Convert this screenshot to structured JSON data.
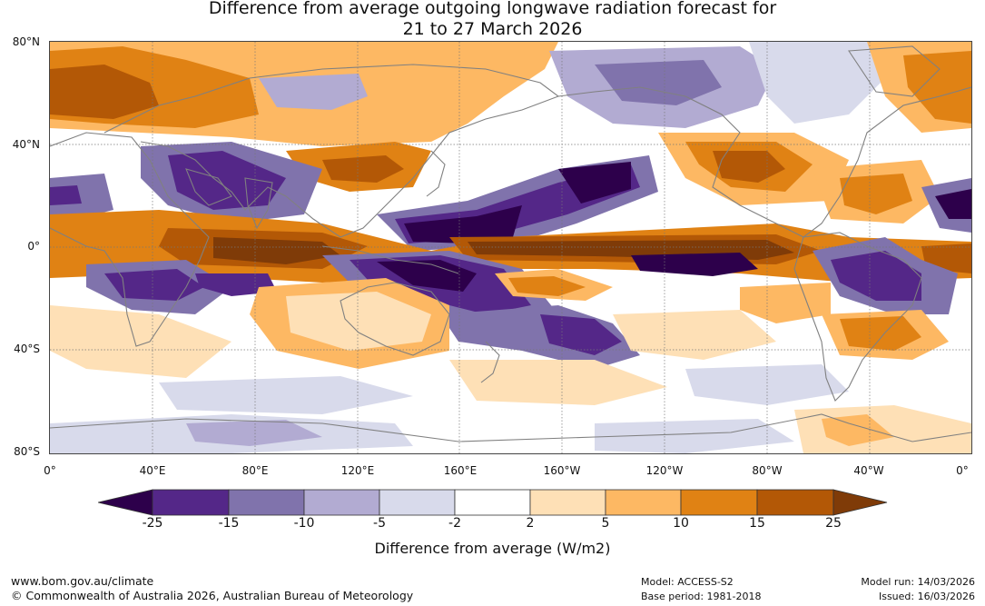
{
  "title_line1": "Difference from average outgoing longwave radiation forecast for",
  "title_line2": "21 to 27 March 2026",
  "colors": {
    "d25": "#2d004b",
    "d15": "#542788",
    "d10": "#8073ac",
    "d5": "#b2abd2",
    "d2": "#d8daeb",
    "neutral": "#ffffff",
    "p2": "#fee0b6",
    "p5": "#fdb863",
    "p10": "#e08214",
    "p15": "#b35806",
    "p25": "#7f3b08"
  },
  "map": {
    "lat_labels": [
      "80°N",
      "40°N",
      "0°",
      "40°S",
      "80°S"
    ],
    "lon_labels": [
      "0°",
      "40°E",
      "80°E",
      "120°E",
      "160°E",
      "160°W",
      "120°W",
      "80°W",
      "40°W",
      "0°"
    ]
  },
  "colorbar": {
    "ticks": [
      "-25",
      "-15",
      "-10",
      "-5",
      "-2",
      "2",
      "5",
      "10",
      "15",
      "25"
    ],
    "label": "Difference from average (W/m2)"
  },
  "footer": {
    "website": "www.bom.gov.au/climate",
    "copyright": "© Commonwealth of Australia 2026, Australian Bureau of Meteorology",
    "model": "Model: ACCESS-S2",
    "base_period": "Base period: 1981-2018",
    "model_run": "Model run: 14/03/2026",
    "issued": "Issued: 16/03/2026"
  }
}
